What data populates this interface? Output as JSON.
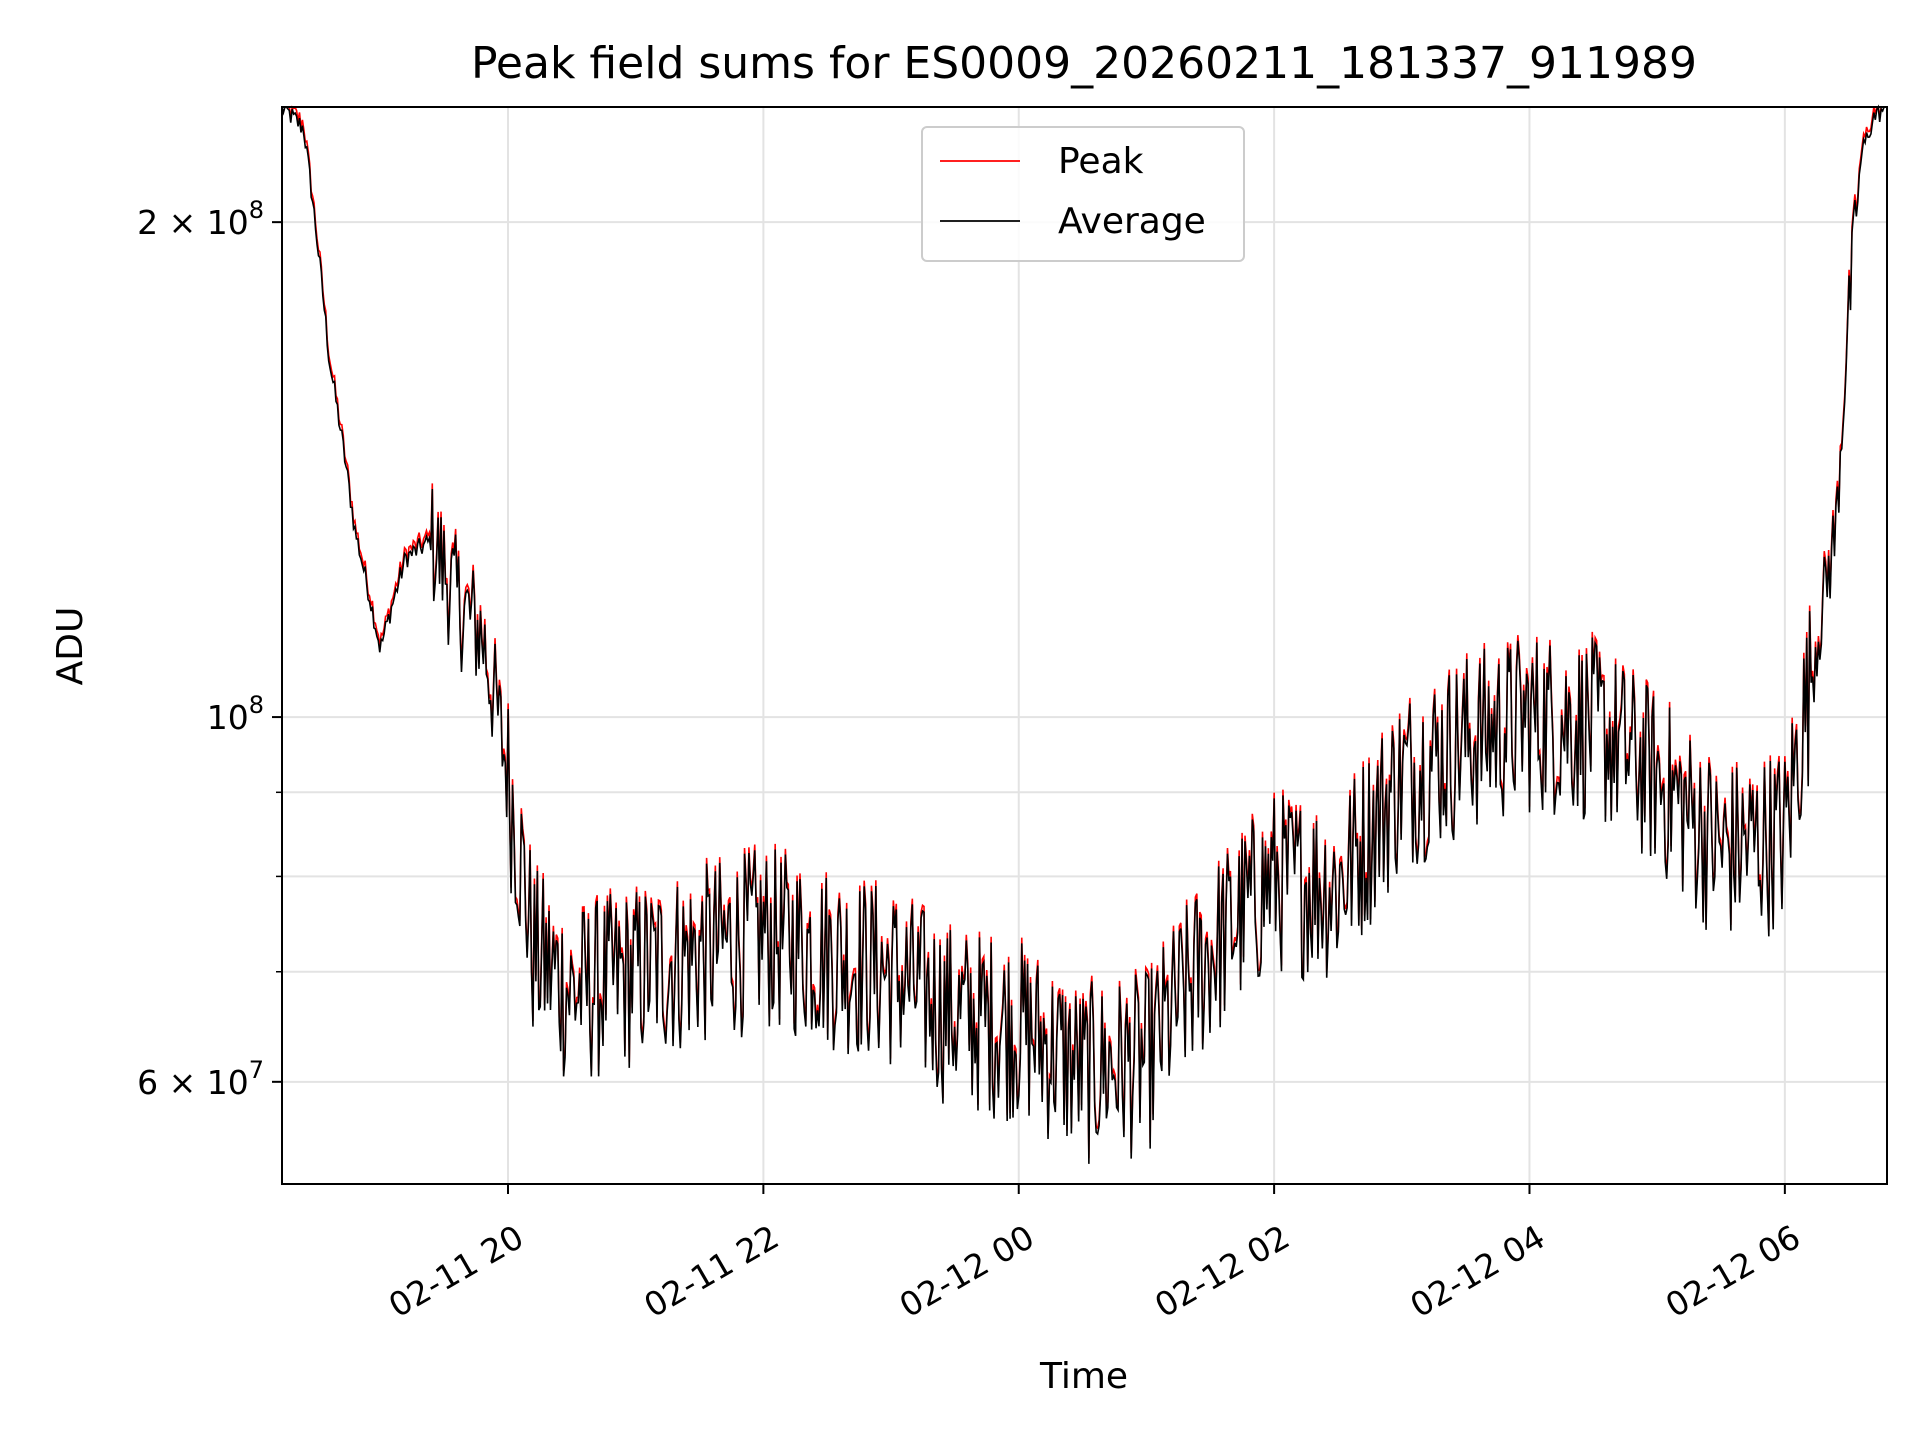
{
  "chart_data": {
    "type": "line",
    "title": "Peak field sums for ES0009_20260211_181337_911989",
    "xlabel": "Time",
    "ylabel": "ADU",
    "yscale": "log",
    "ylim": [
      52000000,
      235000000
    ],
    "xlim_hours": [
      18.23,
      30.8
    ],
    "grid": true,
    "legend_position": "top-center",
    "x_tick_labels": [
      "02-11 20",
      "02-11 22",
      "02-12 00",
      "02-12 02",
      "02-12 04",
      "02-12 06"
    ],
    "x_tick_hours": [
      20,
      22,
      24,
      26,
      28,
      30
    ],
    "y_major_ticks": [
      {
        "value": 60000000,
        "mantissa": "6",
        "base": "10",
        "exp": "7"
      },
      {
        "value": 100000000,
        "mantissa": "",
        "base": "10",
        "exp": "8"
      },
      {
        "value": 200000000,
        "mantissa": "2",
        "base": "10",
        "exp": "8"
      }
    ],
    "y_minor_ticks": [
      70000000,
      80000000,
      90000000
    ],
    "series": [
      {
        "name": "Peak",
        "color": "#ff0000"
      },
      {
        "name": "Average",
        "color": "#000000"
      }
    ],
    "x": [
      18.23,
      18.4,
      18.6,
      18.8,
      19.0,
      19.2,
      19.4,
      19.6,
      19.8,
      20.0,
      20.2,
      20.5,
      21.0,
      21.5,
      22.0,
      22.5,
      23.0,
      23.5,
      24.0,
      24.5,
      25.0,
      25.5,
      26.0,
      26.5,
      27.0,
      27.5,
      28.0,
      28.5,
      29.0,
      29.5,
      30.0,
      30.2,
      30.4,
      30.5,
      30.6,
      30.7,
      30.8
    ],
    "average_values": [
      235000000,
      228000000,
      165000000,
      130000000,
      110000000,
      125000000,
      128000000,
      118000000,
      112000000,
      92000000,
      72000000,
      68000000,
      70000000,
      72000000,
      74000000,
      72000000,
      70000000,
      66000000,
      65000000,
      61000000,
      62000000,
      72000000,
      80000000,
      79000000,
      92000000,
      97000000,
      100000000,
      99000000,
      92000000,
      83000000,
      85000000,
      105000000,
      130000000,
      175000000,
      220000000,
      232000000,
      235000000
    ],
    "peak_offset_fraction": 0.008
  }
}
